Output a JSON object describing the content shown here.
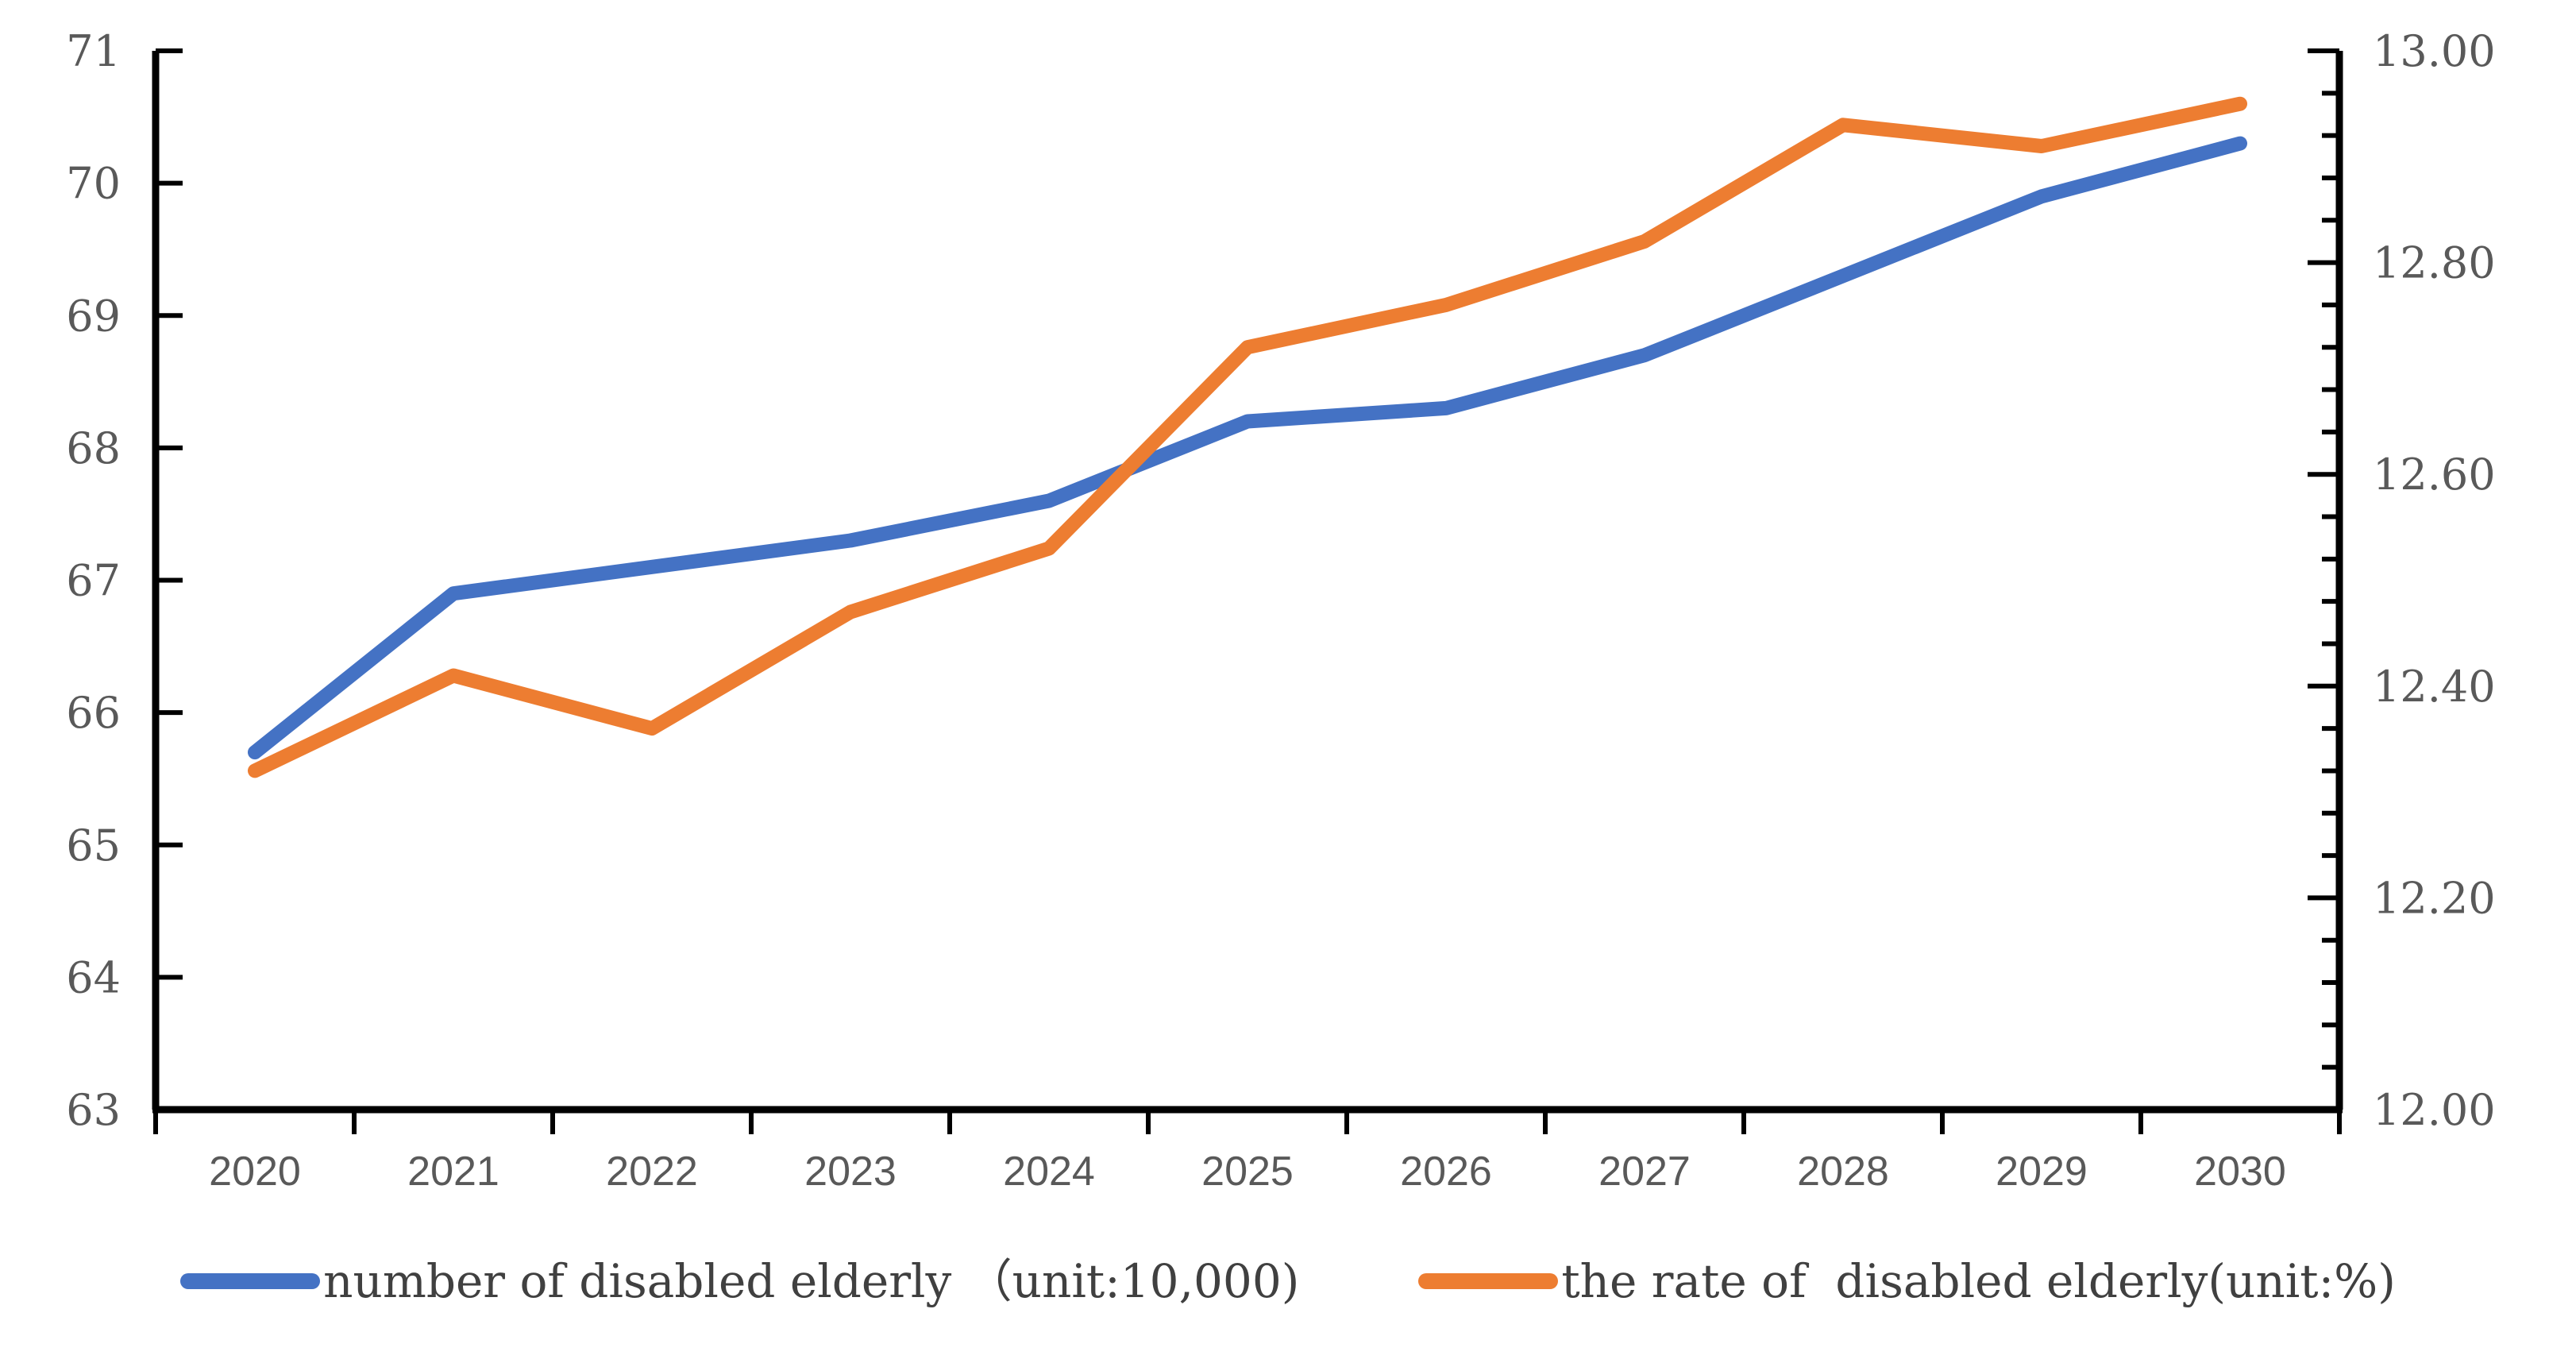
{
  "chart_data": {
    "type": "line",
    "title": "",
    "categories": [
      "2020",
      "2021",
      "2022",
      "2023",
      "2024",
      "2025",
      "2026",
      "2027",
      "2028",
      "2029",
      "2030"
    ],
    "series": [
      {
        "name": "number of disabled elderly （unit:10,000)",
        "axis": "left",
        "color": "#4472C4",
        "values": [
          65.7,
          66.9,
          67.1,
          67.3,
          67.6,
          68.2,
          68.3,
          68.7,
          69.3,
          69.9,
          70.3
        ]
      },
      {
        "name": "the rate of  disabled elderly(unit:%)",
        "axis": "right",
        "color": "#ED7D31",
        "values": [
          12.32,
          12.41,
          12.36,
          12.47,
          12.53,
          12.72,
          12.76,
          12.82,
          12.93,
          12.91,
          12.95
        ]
      }
    ],
    "left_axis": {
      "min": 63,
      "max": 71,
      "major_step": 1,
      "tick_labels": [
        "63",
        "64",
        "65",
        "66",
        "67",
        "68",
        "69",
        "70",
        "71"
      ]
    },
    "right_axis": {
      "min": 12.0,
      "max": 13.0,
      "major_step": 0.2,
      "minor_step": 0.04,
      "tick_labels": [
        "12.00",
        "12.20",
        "12.40",
        "12.60",
        "12.80",
        "13.00"
      ]
    },
    "legend_position": "bottom",
    "grid": false,
    "axis_color": "#000000",
    "label_color": "#595959",
    "legend_text_color": "#404040",
    "background": "#FFFFFF"
  }
}
